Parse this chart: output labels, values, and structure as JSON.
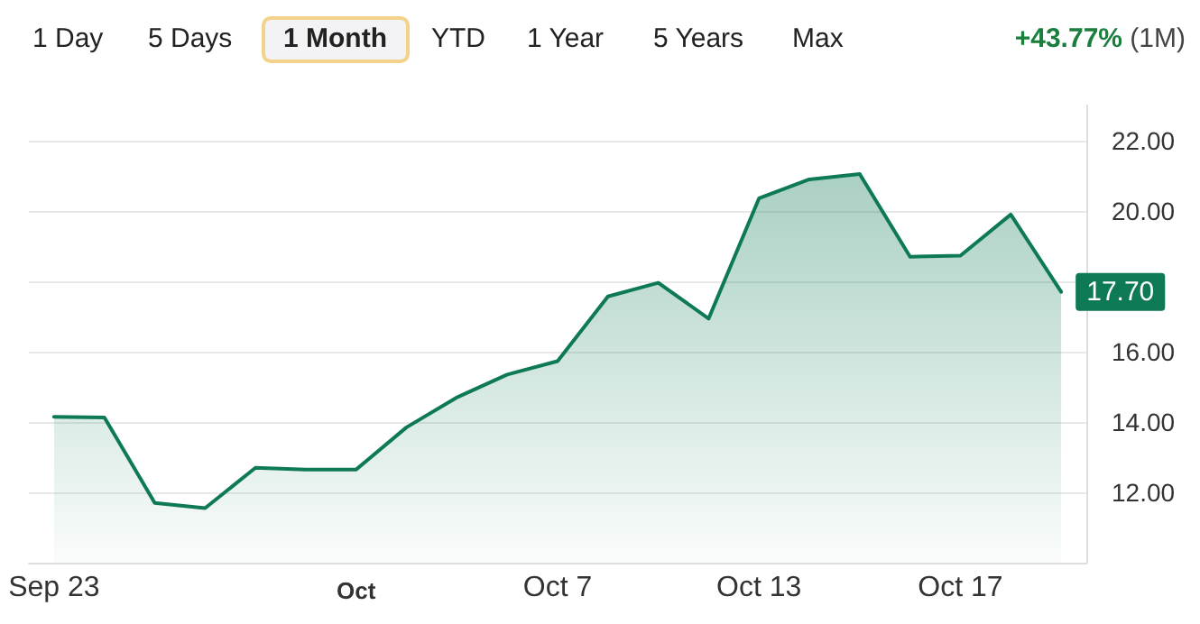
{
  "chart_data": {
    "type": "area",
    "annotations": [
      "1 Day",
      "5 Days",
      "1 Month",
      "YTD",
      "1 Year",
      "5 Years",
      "Max",
      "+43.77%",
      "(1M)"
    ],
    "categories": [
      "Sep 23",
      null,
      null,
      null,
      null,
      null,
      "Oct",
      null,
      null,
      null,
      "Oct 7",
      null,
      null,
      null,
      "Oct 13",
      null,
      null,
      null,
      "Oct 17",
      null,
      null
    ],
    "series": [
      {
        "color": "#0e7a55",
        "values": [
          14.15,
          14.13,
          11.7,
          11.55,
          12.7,
          12.65,
          12.65,
          13.85,
          14.7,
          15.35,
          15.73,
          17.57,
          17.96,
          16.94,
          20.36,
          20.9,
          21.05,
          18.7,
          18.73,
          19.9,
          17.7
        ],
        "value_labels": [
          null,
          null,
          null,
          null,
          null,
          null,
          null,
          null,
          null,
          null,
          null,
          null,
          null,
          null,
          null,
          null,
          null,
          null,
          null,
          null,
          "17.70"
        ]
      }
    ],
    "ylim": [
      10,
      23
    ],
    "yticks": [
      {
        "value": 12,
        "label": "12.00"
      },
      {
        "value": 14,
        "label": "14.00"
      },
      {
        "value": 16,
        "label": "16.00"
      },
      {
        "value": 18,
        "label": null
      },
      {
        "value": 20,
        "label": "20.00"
      },
      {
        "value": 22,
        "label": "22.00"
      }
    ],
    "grid": "y",
    "marker": "none",
    "line_style": "solid"
  }
}
